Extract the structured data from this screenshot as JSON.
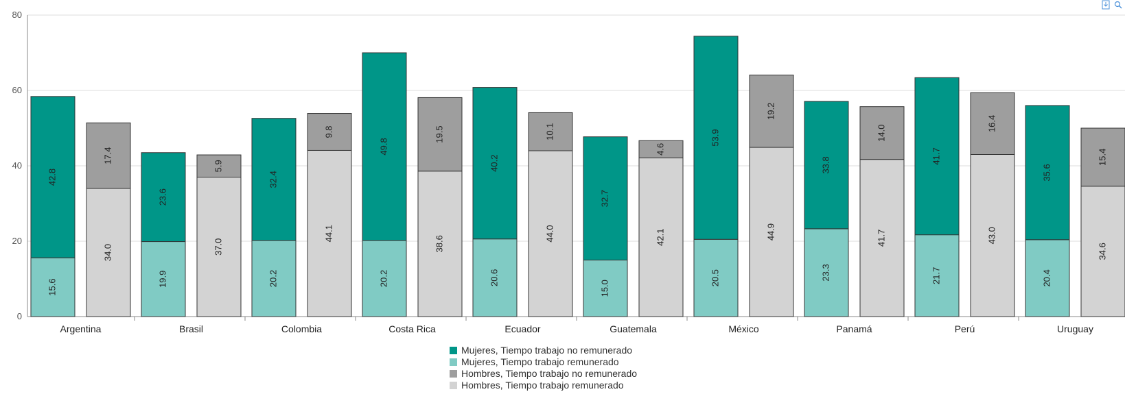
{
  "chart_data": {
    "type": "bar",
    "stacked": true,
    "ylim": [
      0,
      80
    ],
    "yticks": [
      "0",
      "20",
      "40",
      "60",
      "80"
    ],
    "grid": true,
    "legend_position": "bottom",
    "categories": [
      "Argentina",
      "Brasil",
      "Colombia",
      "Costa Rica",
      "Ecuador",
      "Guatemala",
      "México",
      "Panamá",
      "Perú",
      "Uruguay"
    ],
    "series": [
      {
        "name": "Mujeres, Tiempo trabajo remunerado",
        "group": "mujeres",
        "color": "#80cbc4",
        "values": [
          15.6,
          19.9,
          20.2,
          20.2,
          20.6,
          15.0,
          20.5,
          23.3,
          21.7,
          20.4
        ],
        "labels": [
          "15.6",
          "19.9",
          "20.2",
          "20.2",
          "20.6",
          "15.0",
          "20.5",
          "23.3",
          "21.7",
          "20.4"
        ]
      },
      {
        "name": "Mujeres, Tiempo trabajo no remunerado",
        "group": "mujeres",
        "color": "#009688",
        "values": [
          42.8,
          23.6,
          32.4,
          49.8,
          40.2,
          32.7,
          53.9,
          33.8,
          41.7,
          35.6
        ],
        "labels": [
          "42.8",
          "23.6",
          "32.4",
          "49.8",
          "40.2",
          "32.7",
          "53.9",
          "33.8",
          "41.7",
          "35.6"
        ]
      },
      {
        "name": "Hombres, Tiempo trabajo remunerado",
        "group": "hombres",
        "color": "#d3d3d3",
        "values": [
          34.0,
          37.0,
          44.1,
          38.6,
          44.0,
          42.1,
          44.9,
          41.7,
          43.0,
          34.6
        ],
        "labels": [
          "34.0",
          "37.0",
          "44.1",
          "38.6",
          "44.0",
          "42.1",
          "44.9",
          "41.7",
          "43.0",
          "34.6"
        ]
      },
      {
        "name": "Hombres, Tiempo trabajo no remunerado",
        "group": "hombres",
        "color": "#9e9e9e",
        "values": [
          17.4,
          5.9,
          9.8,
          19.5,
          10.1,
          4.6,
          19.2,
          14.0,
          16.4,
          15.4
        ],
        "labels": [
          "17.4",
          "5.9",
          "9.8",
          "19.5",
          "10.1",
          "4.6",
          "19.2",
          "14.0",
          "16.4",
          "15.4"
        ]
      }
    ]
  },
  "legend": [
    {
      "label": "Mujeres, Tiempo trabajo no remunerado",
      "color": "#009688"
    },
    {
      "label": "Mujeres, Tiempo trabajo remunerado",
      "color": "#80cbc4"
    },
    {
      "label": "Hombres, Tiempo trabajo no remunerado",
      "color": "#9e9e9e"
    },
    {
      "label": "Hombres, Tiempo trabajo remunerado",
      "color": "#d3d3d3"
    }
  ],
  "toolbar": {
    "icons": [
      "download-icon",
      "zoom-icon"
    ]
  }
}
